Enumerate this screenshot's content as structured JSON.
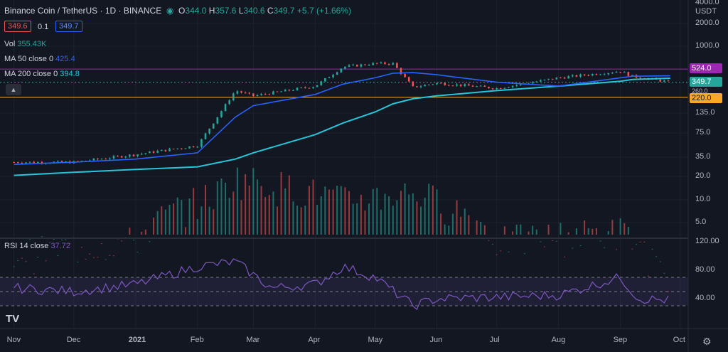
{
  "header": {
    "symbol": "Binance Coin / TetherUS",
    "interval": "1D",
    "exchange": "BINANCE",
    "o_label": "O",
    "o": "344.0",
    "h_label": "H",
    "h": "357.6",
    "l_label": "L",
    "l": "340.6",
    "c_label": "C",
    "c": "349.7",
    "change": "+5.7 (+1.66%)",
    "bid": "349.6",
    "spread": "0.1",
    "ask": "349.7"
  },
  "indicators": {
    "vol_label": "Vol",
    "vol_value": "355.43K",
    "ma50_label": "MA 50 close 0",
    "ma50_value": "425.4",
    "ma200_label": "MA 200 close 0",
    "ma200_value": "394.8",
    "rsi_label": "RSI 14 close",
    "rsi_value": "37.72"
  },
  "currency": "USDT",
  "price_tags": {
    "upper_line": "524.0",
    "last": "349.7",
    "partial": "260.0",
    "lower_line": "220.0"
  },
  "colors": {
    "up": "#26a69a",
    "down": "#ef5350",
    "ma50": "#2962ff",
    "ma200": "#26c6da",
    "rsi": "#7e57c2",
    "upper_line": "#9c27b0",
    "lower_line": "#f9a825"
  },
  "icons": {
    "toggle": "collapse-icon",
    "logo": "tradingview-logo",
    "settings": "gear-icon"
  },
  "chart_data": [
    {
      "type": "candlestick",
      "title": "",
      "y_scale": "log",
      "y_ticks": [
        "4000.0",
        "2000.0",
        "1000.0",
        "524.0",
        "349.7",
        "220.0",
        "135.0",
        "75.0",
        "35.0"
      ],
      "x_ticks": [
        "Nov",
        "Dec",
        "2021",
        "Feb",
        "Mar",
        "Apr",
        "May",
        "Jun",
        "Jul",
        "Aug",
        "Sep",
        "Oct"
      ],
      "x": [
        "2020-11-01",
        "2020-12-01",
        "2021-01-01",
        "2021-02-01",
        "2021-02-20",
        "2021-03-01",
        "2021-04-01",
        "2021-04-15",
        "2021-05-01",
        "2021-05-10",
        "2021-05-20",
        "2021-06-01",
        "2021-07-01",
        "2021-08-01",
        "2021-09-01",
        "2021-09-07",
        "2021-09-26"
      ],
      "close": [
        30,
        30,
        38,
        50,
        270,
        230,
        310,
        560,
        620,
        620,
        300,
        340,
        290,
        400,
        490,
        420,
        349.7
      ],
      "series": [
        {
          "name": "MA 50 close 0",
          "values": [
            28,
            30,
            33,
            40,
            120,
            170,
            240,
            330,
            400,
            460,
            470,
            440,
            350,
            310,
            400,
            420,
            425.4
          ]
        },
        {
          "name": "MA 200 close 0",
          "values": [
            20,
            22,
            24,
            26,
            33,
            40,
            70,
            100,
            140,
            180,
            210,
            230,
            270,
            310,
            360,
            380,
            394.8
          ]
        }
      ],
      "horizontal_lines": [
        524.0,
        220.0
      ]
    },
    {
      "type": "bar",
      "title": "",
      "y_ticks": [
        "20.0",
        "10.0",
        "5.0"
      ],
      "x": [
        "2020-11-01",
        "2021-01-01",
        "2021-02-10",
        "2021-02-20",
        "2021-04-15",
        "2021-05-20",
        "2021-07-01",
        "2021-09-01",
        "2021-09-26"
      ],
      "values": [
        2,
        3,
        12,
        20,
        10,
        13,
        3,
        4,
        0.36
      ],
      "ylabel": ""
    },
    {
      "type": "line",
      "title": "",
      "y_ticks": [
        "120.00",
        "80.00",
        "40.00"
      ],
      "bands": [
        70,
        30
      ],
      "x": [
        "2020-11-01",
        "2020-12-01",
        "2021-01-01",
        "2021-02-01",
        "2021-02-20",
        "2021-03-10",
        "2021-04-01",
        "2021-04-15",
        "2021-05-01",
        "2021-05-20",
        "2021-06-01",
        "2021-07-01",
        "2021-08-01",
        "2021-09-01",
        "2021-09-10",
        "2021-09-26"
      ],
      "series": [
        {
          "name": "RSI 14 close",
          "values": [
            55,
            50,
            60,
            85,
            92,
            55,
            60,
            85,
            70,
            30,
            40,
            42,
            45,
            70,
            40,
            37.72
          ]
        }
      ]
    }
  ]
}
